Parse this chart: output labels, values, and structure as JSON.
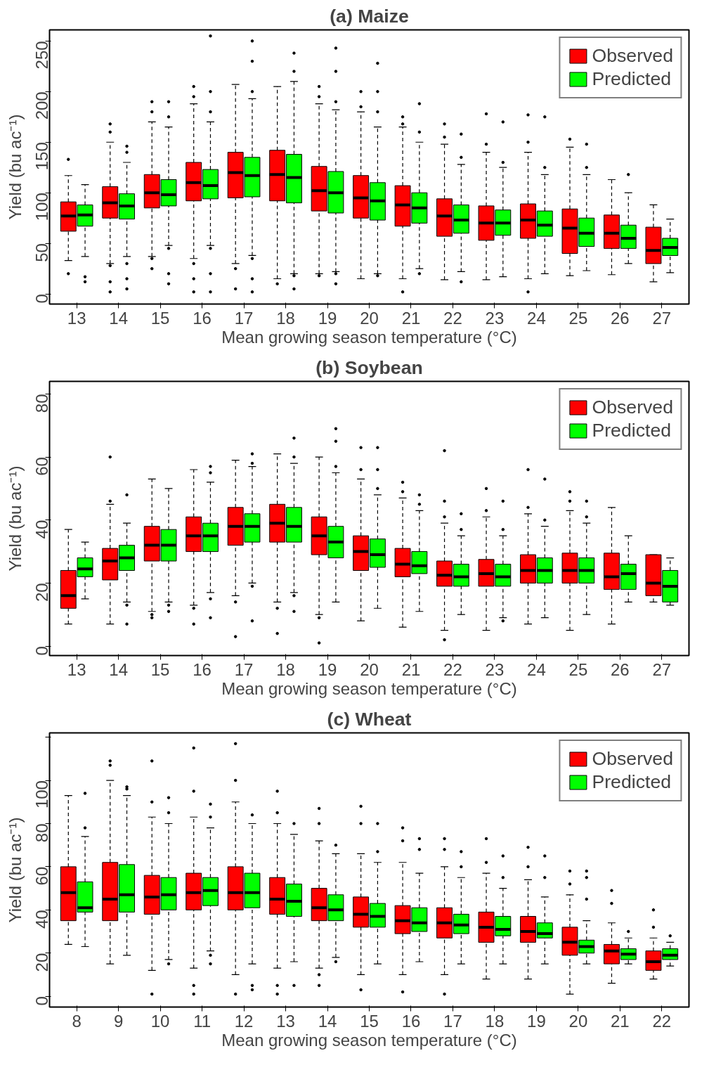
{
  "chart_data": [
    {
      "type": "box",
      "title": "(a) Maize",
      "xlabel": "Mean growing season temperature (°C)",
      "ylabel": "Yield (bu ac⁻¹)",
      "categories": [
        "13",
        "14",
        "15",
        "16",
        "17",
        "18",
        "19",
        "20",
        "21",
        "22",
        "23",
        "24",
        "25",
        "26",
        "27"
      ],
      "ylim": [
        -10,
        261
      ],
      "yticks": [
        0,
        50,
        100,
        150,
        200,
        250
      ],
      "grid": false,
      "legend": "top right",
      "series": [
        {
          "name": "Observed",
          "color": "#ff0000",
          "boxes": [
            {
              "low": 33,
              "q1": 62,
              "median": 77,
              "q3": 91,
              "high": 117,
              "outliers": [
                133,
                20
              ]
            },
            {
              "low": 30,
              "q1": 75,
              "median": 90,
              "q3": 106,
              "high": 150,
              "outliers": [
                160,
                168,
                28,
                12,
                2
              ]
            },
            {
              "low": 37,
              "q1": 85,
              "median": 100,
              "q3": 118,
              "high": 170,
              "outliers": [
                180,
                190,
                35,
                25
              ]
            },
            {
              "low": 35,
              "q1": 92,
              "median": 110,
              "q3": 130,
              "high": 188,
              "outliers": [
                195,
                205,
                30,
                15,
                2
              ]
            },
            {
              "low": 30,
              "q1": 95,
              "median": 120,
              "q3": 140,
              "high": 207,
              "outliers": [
                25,
                5
              ]
            },
            {
              "low": 15,
              "q1": 92,
              "median": 118,
              "q3": 142,
              "high": 205,
              "outliers": [
                10
              ]
            },
            {
              "low": 20,
              "q1": 82,
              "median": 102,
              "q3": 126,
              "high": 188,
              "outliers": [
                195,
                205,
                18
              ]
            },
            {
              "low": 15,
              "q1": 75,
              "median": 95,
              "q3": 117,
              "high": 180,
              "outliers": [
                185,
                200
              ]
            },
            {
              "low": 15,
              "q1": 67,
              "median": 88,
              "q3": 107,
              "high": 165,
              "outliers": [
                168,
                175,
                2
              ]
            },
            {
              "low": 14,
              "q1": 57,
              "median": 77,
              "q3": 94,
              "high": 148,
              "outliers": [
                155,
                168
              ]
            },
            {
              "low": 14,
              "q1": 53,
              "median": 70,
              "q3": 87,
              "high": 140,
              "outliers": [
                148,
                178
              ]
            },
            {
              "low": 15,
              "q1": 55,
              "median": 73,
              "q3": 89,
              "high": 140,
              "outliers": [
                150,
                177,
                2
              ]
            },
            {
              "low": 18,
              "q1": 40,
              "median": 65,
              "q3": 84,
              "high": 145,
              "outliers": [
                153
              ]
            },
            {
              "low": 19,
              "q1": 45,
              "median": 60,
              "q3": 78,
              "high": 113
            },
            {
              "low": 12,
              "q1": 30,
              "median": 43,
              "q3": 66,
              "high": 88
            }
          ]
        },
        {
          "name": "Predicted",
          "color": "#00ff00",
          "boxes": [
            {
              "low": 37,
              "q1": 67,
              "median": 78,
              "q3": 88,
              "high": 108,
              "outliers": [
                17,
                12
              ]
            },
            {
              "low": 37,
              "q1": 74,
              "median": 87,
              "q3": 99,
              "high": 130,
              "outliers": [
                140,
                146,
                30,
                15,
                5
              ]
            },
            {
              "low": 48,
              "q1": 87,
              "median": 98,
              "q3": 113,
              "high": 165,
              "outliers": [
                175,
                190,
                45,
                20,
                10
              ]
            },
            {
              "low": 48,
              "q1": 94,
              "median": 107,
              "q3": 123,
              "high": 170,
              "outliers": [
                180,
                200,
                255,
                45,
                20,
                2
              ]
            },
            {
              "low": 38,
              "q1": 96,
              "median": 117,
              "q3": 135,
              "high": 193,
              "outliers": [
                200,
                230,
                250,
                35,
                15,
                2
              ]
            },
            {
              "low": 20,
              "q1": 90,
              "median": 115,
              "q3": 138,
              "high": 210,
              "outliers": [
                220,
                238,
                18,
                5
              ]
            },
            {
              "low": 22,
              "q1": 80,
              "median": 100,
              "q3": 121,
              "high": 182,
              "outliers": [
                190,
                220,
                243,
                20,
                10
              ]
            },
            {
              "low": 20,
              "q1": 73,
              "median": 92,
              "q3": 110,
              "high": 165,
              "outliers": [
                180,
                200,
                228,
                18
              ]
            },
            {
              "low": 25,
              "q1": 70,
              "median": 85,
              "q3": 100,
              "high": 150,
              "outliers": [
                160,
                188,
                20
              ]
            },
            {
              "low": 22,
              "q1": 60,
              "median": 73,
              "q3": 88,
              "high": 128,
              "outliers": [
                135,
                158,
                12
              ]
            },
            {
              "low": 17,
              "q1": 58,
              "median": 70,
              "q3": 83,
              "high": 125,
              "outliers": [
                130,
                170
              ]
            },
            {
              "low": 20,
              "q1": 57,
              "median": 68,
              "q3": 82,
              "high": 118,
              "outliers": [
                125,
                175
              ]
            },
            {
              "low": 23,
              "q1": 47,
              "median": 60,
              "q3": 75,
              "high": 118,
              "outliers": [
                125,
                148
              ]
            },
            {
              "low": 30,
              "q1": 45,
              "median": 55,
              "q3": 68,
              "high": 100,
              "outliers": [
                118
              ]
            },
            {
              "low": 21,
              "q1": 38,
              "median": 46,
              "q3": 55,
              "high": 74
            }
          ]
        }
      ]
    },
    {
      "type": "box",
      "title": "(b) Soybean",
      "xlabel": "Mean growing season temperature (°C)",
      "ylabel": "Yield (bu ac⁻¹)",
      "categories": [
        "13",
        "14",
        "15",
        "16",
        "17",
        "18",
        "19",
        "20",
        "21",
        "22",
        "23",
        "24",
        "25",
        "26",
        "27"
      ],
      "ylim": [
        -3,
        84
      ],
      "yticks": [
        0,
        20,
        40,
        60,
        80
      ],
      "grid": false,
      "legend": "top right",
      "series": [
        {
          "name": "Observed",
          "color": "#ff0000",
          "boxes": [
            {
              "low": 7,
              "q1": 12,
              "median": 16,
              "q3": 24,
              "high": 37
            },
            {
              "low": 7,
              "q1": 21,
              "median": 27,
              "q3": 31,
              "high": 45,
              "outliers": [
                46,
                60
              ]
            },
            {
              "low": 11,
              "q1": 27,
              "median": 32,
              "q3": 38,
              "high": 53,
              "outliers": [
                10,
                9
              ]
            },
            {
              "low": 13,
              "q1": 30,
              "median": 35,
              "q3": 41,
              "high": 56,
              "outliers": [
                12,
                7
              ]
            },
            {
              "low": 16,
              "q1": 32,
              "median": 38,
              "q3": 44,
              "high": 59,
              "outliers": [
                14,
                3
              ]
            },
            {
              "low": 14,
              "q1": 33,
              "median": 39,
              "q3": 45,
              "high": 61,
              "outliers": [
                12,
                4
              ]
            },
            {
              "low": 10,
              "q1": 29,
              "median": 35,
              "q3": 41,
              "high": 60,
              "outliers": [
                9,
                1
              ]
            },
            {
              "low": 8,
              "q1": 24,
              "median": 30,
              "q3": 35,
              "high": 53,
              "outliers": [
                56,
                63
              ]
            },
            {
              "low": 6,
              "q1": 22,
              "median": 26,
              "q3": 31,
              "high": 47,
              "outliers": [
                49,
                52
              ]
            },
            {
              "low": 5,
              "q1": 19,
              "median": 22.5,
              "q3": 27,
              "high": 39,
              "outliers": [
                41,
                46,
                62,
                2
              ]
            },
            {
              "low": 5,
              "q1": 19,
              "median": 23,
              "q3": 27.5,
              "high": 41,
              "outliers": [
                43,
                50
              ]
            },
            {
              "low": 7,
              "q1": 20,
              "median": 24,
              "q3": 29,
              "high": 42,
              "outliers": [
                44,
                56
              ]
            },
            {
              "low": 5,
              "q1": 20,
              "median": 24,
              "q3": 29.5,
              "high": 43,
              "outliers": [
                46,
                49
              ]
            },
            {
              "low": 7,
              "q1": 18,
              "median": 22,
              "q3": 29.5,
              "high": 44
            },
            {
              "low": 14,
              "q1": 16,
              "median": 20,
              "q3": 29,
              "high": 29
            }
          ]
        },
        {
          "name": "Predicted",
          "color": "#00ff00",
          "boxes": [
            {
              "low": 15,
              "q1": 22,
              "median": 24.5,
              "q3": 28,
              "high": 33
            },
            {
              "low": 14,
              "q1": 24,
              "median": 28,
              "q3": 32,
              "high": 39,
              "outliers": [
                48,
                13,
                7
              ]
            },
            {
              "low": 14,
              "q1": 27,
              "median": 32,
              "q3": 37,
              "high": 50,
              "outliers": [
                13,
                11
              ]
            },
            {
              "low": 17,
              "q1": 30,
              "median": 35,
              "q3": 39,
              "high": 52,
              "outliers": [
                55,
                57,
                15,
                9
              ]
            },
            {
              "low": 20,
              "q1": 33,
              "median": 38,
              "q3": 42,
              "high": 57,
              "outliers": [
                58,
                61,
                19,
                8
              ]
            },
            {
              "low": 17,
              "q1": 33,
              "median": 38,
              "q3": 44,
              "high": 58,
              "outliers": [
                60,
                66,
                16,
                11
              ]
            },
            {
              "low": 14,
              "q1": 28,
              "median": 33,
              "q3": 38,
              "high": 55,
              "outliers": [
                57,
                65,
                69
              ]
            },
            {
              "low": 12,
              "q1": 25,
              "median": 29,
              "q3": 34,
              "high": 48,
              "outliers": [
                50,
                56,
                63
              ]
            },
            {
              "low": 11,
              "q1": 23,
              "median": 25.5,
              "q3": 30,
              "high": 43,
              "outliers": [
                45,
                48
              ]
            },
            {
              "low": 10,
              "q1": 19,
              "median": 22,
              "q3": 26,
              "high": 35,
              "outliers": [
                37,
                42
              ]
            },
            {
              "low": 9,
              "q1": 19,
              "median": 22,
              "q3": 26,
              "high": 35,
              "outliers": [
                37,
                46,
                8
              ]
            },
            {
              "low": 9,
              "q1": 20,
              "median": 24,
              "q3": 28,
              "high": 38,
              "outliers": [
                40,
                53
              ]
            },
            {
              "low": 10,
              "q1": 20,
              "median": 24,
              "q3": 28,
              "high": 39,
              "outliers": [
                41,
                46
              ]
            },
            {
              "low": 14,
              "q1": 18,
              "median": 23,
              "q3": 26,
              "high": 35
            },
            {
              "low": 13,
              "q1": 14,
              "median": 19,
              "q3": 24,
              "high": 28
            }
          ]
        }
      ]
    },
    {
      "type": "box",
      "title": "(c) Wheat",
      "xlabel": "Mean growing season temperature (°C)",
      "ylabel": "Yield (bu ac⁻¹)",
      "categories": [
        "8",
        "9",
        "10",
        "11",
        "12",
        "13",
        "14",
        "15",
        "16",
        "17",
        "18",
        "19",
        "20",
        "21",
        "22"
      ],
      "ylim": [
        -5,
        122
      ],
      "yticks": [
        0,
        20,
        40,
        60,
        80,
        100,
        {
          "value": 120,
          "label": null
        }
      ],
      "grid": false,
      "legend": "top right",
      "series": [
        {
          "name": "Observed",
          "color": "#ff0000",
          "boxes": [
            {
              "low": 24,
              "q1": 35,
              "median": 48,
              "q3": 60,
              "high": 93
            },
            {
              "low": 15,
              "q1": 35,
              "median": 45,
              "q3": 62,
              "high": 100,
              "outliers": [
                107,
                109
              ]
            },
            {
              "low": 12,
              "q1": 38,
              "median": 46,
              "q3": 56,
              "high": 83,
              "outliers": [
                90,
                109,
                1
              ]
            },
            {
              "low": 13,
              "q1": 40,
              "median": 48,
              "q3": 57,
              "high": 83,
              "outliers": [
                95,
                115,
                5,
                1
              ]
            },
            {
              "low": 10,
              "q1": 40,
              "median": 48,
              "q3": 60,
              "high": 90,
              "outliers": [
                100,
                117,
                1
              ]
            },
            {
              "low": 13,
              "q1": 38,
              "median": 45,
              "q3": 55,
              "high": 80,
              "outliers": [
                85,
                95,
                5,
                1
              ]
            },
            {
              "low": 13,
              "q1": 35,
              "median": 41,
              "q3": 50,
              "high": 72,
              "outliers": [
                80,
                87,
                10,
                5
              ]
            },
            {
              "low": 10,
              "q1": 32,
              "median": 38,
              "q3": 46,
              "high": 66,
              "outliers": [
                80,
                88,
                3
              ]
            },
            {
              "low": 10,
              "q1": 29,
              "median": 35,
              "q3": 42,
              "high": 62,
              "outliers": [
                72,
                78,
                2
              ]
            },
            {
              "low": 10,
              "q1": 27,
              "median": 34,
              "q3": 41,
              "high": 60,
              "outliers": [
                68,
                73,
                1
              ]
            },
            {
              "low": 8,
              "q1": 25,
              "median": 32,
              "q3": 39,
              "high": 57,
              "outliers": [
                62,
                73
              ]
            },
            {
              "low": 8,
              "q1": 25,
              "median": 30,
              "q3": 37,
              "high": 54,
              "outliers": [
                60,
                69
              ]
            },
            {
              "low": 1,
              "q1": 19,
              "median": 25,
              "q3": 32,
              "high": 47,
              "outliers": [
                52,
                58
              ]
            },
            {
              "low": 6,
              "q1": 15,
              "median": 21,
              "q3": 24,
              "high": 34,
              "outliers": [
                43,
                49
              ]
            },
            {
              "low": 8,
              "q1": 12,
              "median": 16,
              "q3": 21,
              "high": 27,
              "outliers": [
                32,
                40
              ]
            }
          ]
        },
        {
          "name": "Predicted",
          "color": "#00ff00",
          "boxes": [
            {
              "low": 23,
              "q1": 39,
              "median": 41,
              "q3": 53,
              "high": 74,
              "outliers": [
                78,
                94
              ]
            },
            {
              "low": 19,
              "q1": 39,
              "median": 47,
              "q3": 61,
              "high": 93,
              "outliers": [
                97,
                96
              ]
            },
            {
              "low": 17,
              "q1": 40,
              "median": 47,
              "q3": 55,
              "high": 80,
              "outliers": [
                85,
                92,
                15
              ]
            },
            {
              "low": 21,
              "q1": 42,
              "median": 49,
              "q3": 55,
              "high": 78,
              "outliers": [
                83,
                89,
                19,
                15
              ]
            },
            {
              "low": 15,
              "q1": 41,
              "median": 48,
              "q3": 57,
              "high": 80,
              "outliers": [
                84,
                5,
                3
              ]
            },
            {
              "low": 16,
              "q1": 37,
              "median": 44,
              "q3": 52,
              "high": 75,
              "outliers": [
                80,
                5
              ]
            },
            {
              "low": 18,
              "q1": 35,
              "median": 40,
              "q3": 47,
              "high": 66,
              "outliers": [
                70,
                16
              ]
            },
            {
              "low": 15,
              "q1": 32,
              "median": 37,
              "q3": 43,
              "high": 62,
              "outliers": [
                67,
                80
              ]
            },
            {
              "low": 16,
              "q1": 30,
              "median": 34,
              "q3": 41,
              "high": 57,
              "outliers": [
                68,
                73
              ]
            },
            {
              "low": 15,
              "q1": 29,
              "median": 33,
              "q3": 38,
              "high": 55,
              "outliers": [
                60,
                67
              ]
            },
            {
              "low": 15,
              "q1": 28,
              "median": 31,
              "q3": 37,
              "high": 50,
              "outliers": [
                55,
                65
              ]
            },
            {
              "low": 15,
              "q1": 27,
              "median": 29,
              "q3": 34,
              "high": 46,
              "outliers": [
                55,
                65
              ]
            },
            {
              "low": 15,
              "q1": 20,
              "median": 23,
              "q3": 26,
              "high": 35,
              "outliers": [
                45,
                55,
                58
              ]
            },
            {
              "low": 15,
              "q1": 17,
              "median": 19.5,
              "q3": 22,
              "high": 27,
              "outliers": [
                30
              ]
            },
            {
              "low": 14,
              "q1": 17,
              "median": 19,
              "q3": 22,
              "high": 25,
              "outliers": [
                28
              ]
            }
          ]
        }
      ]
    }
  ]
}
